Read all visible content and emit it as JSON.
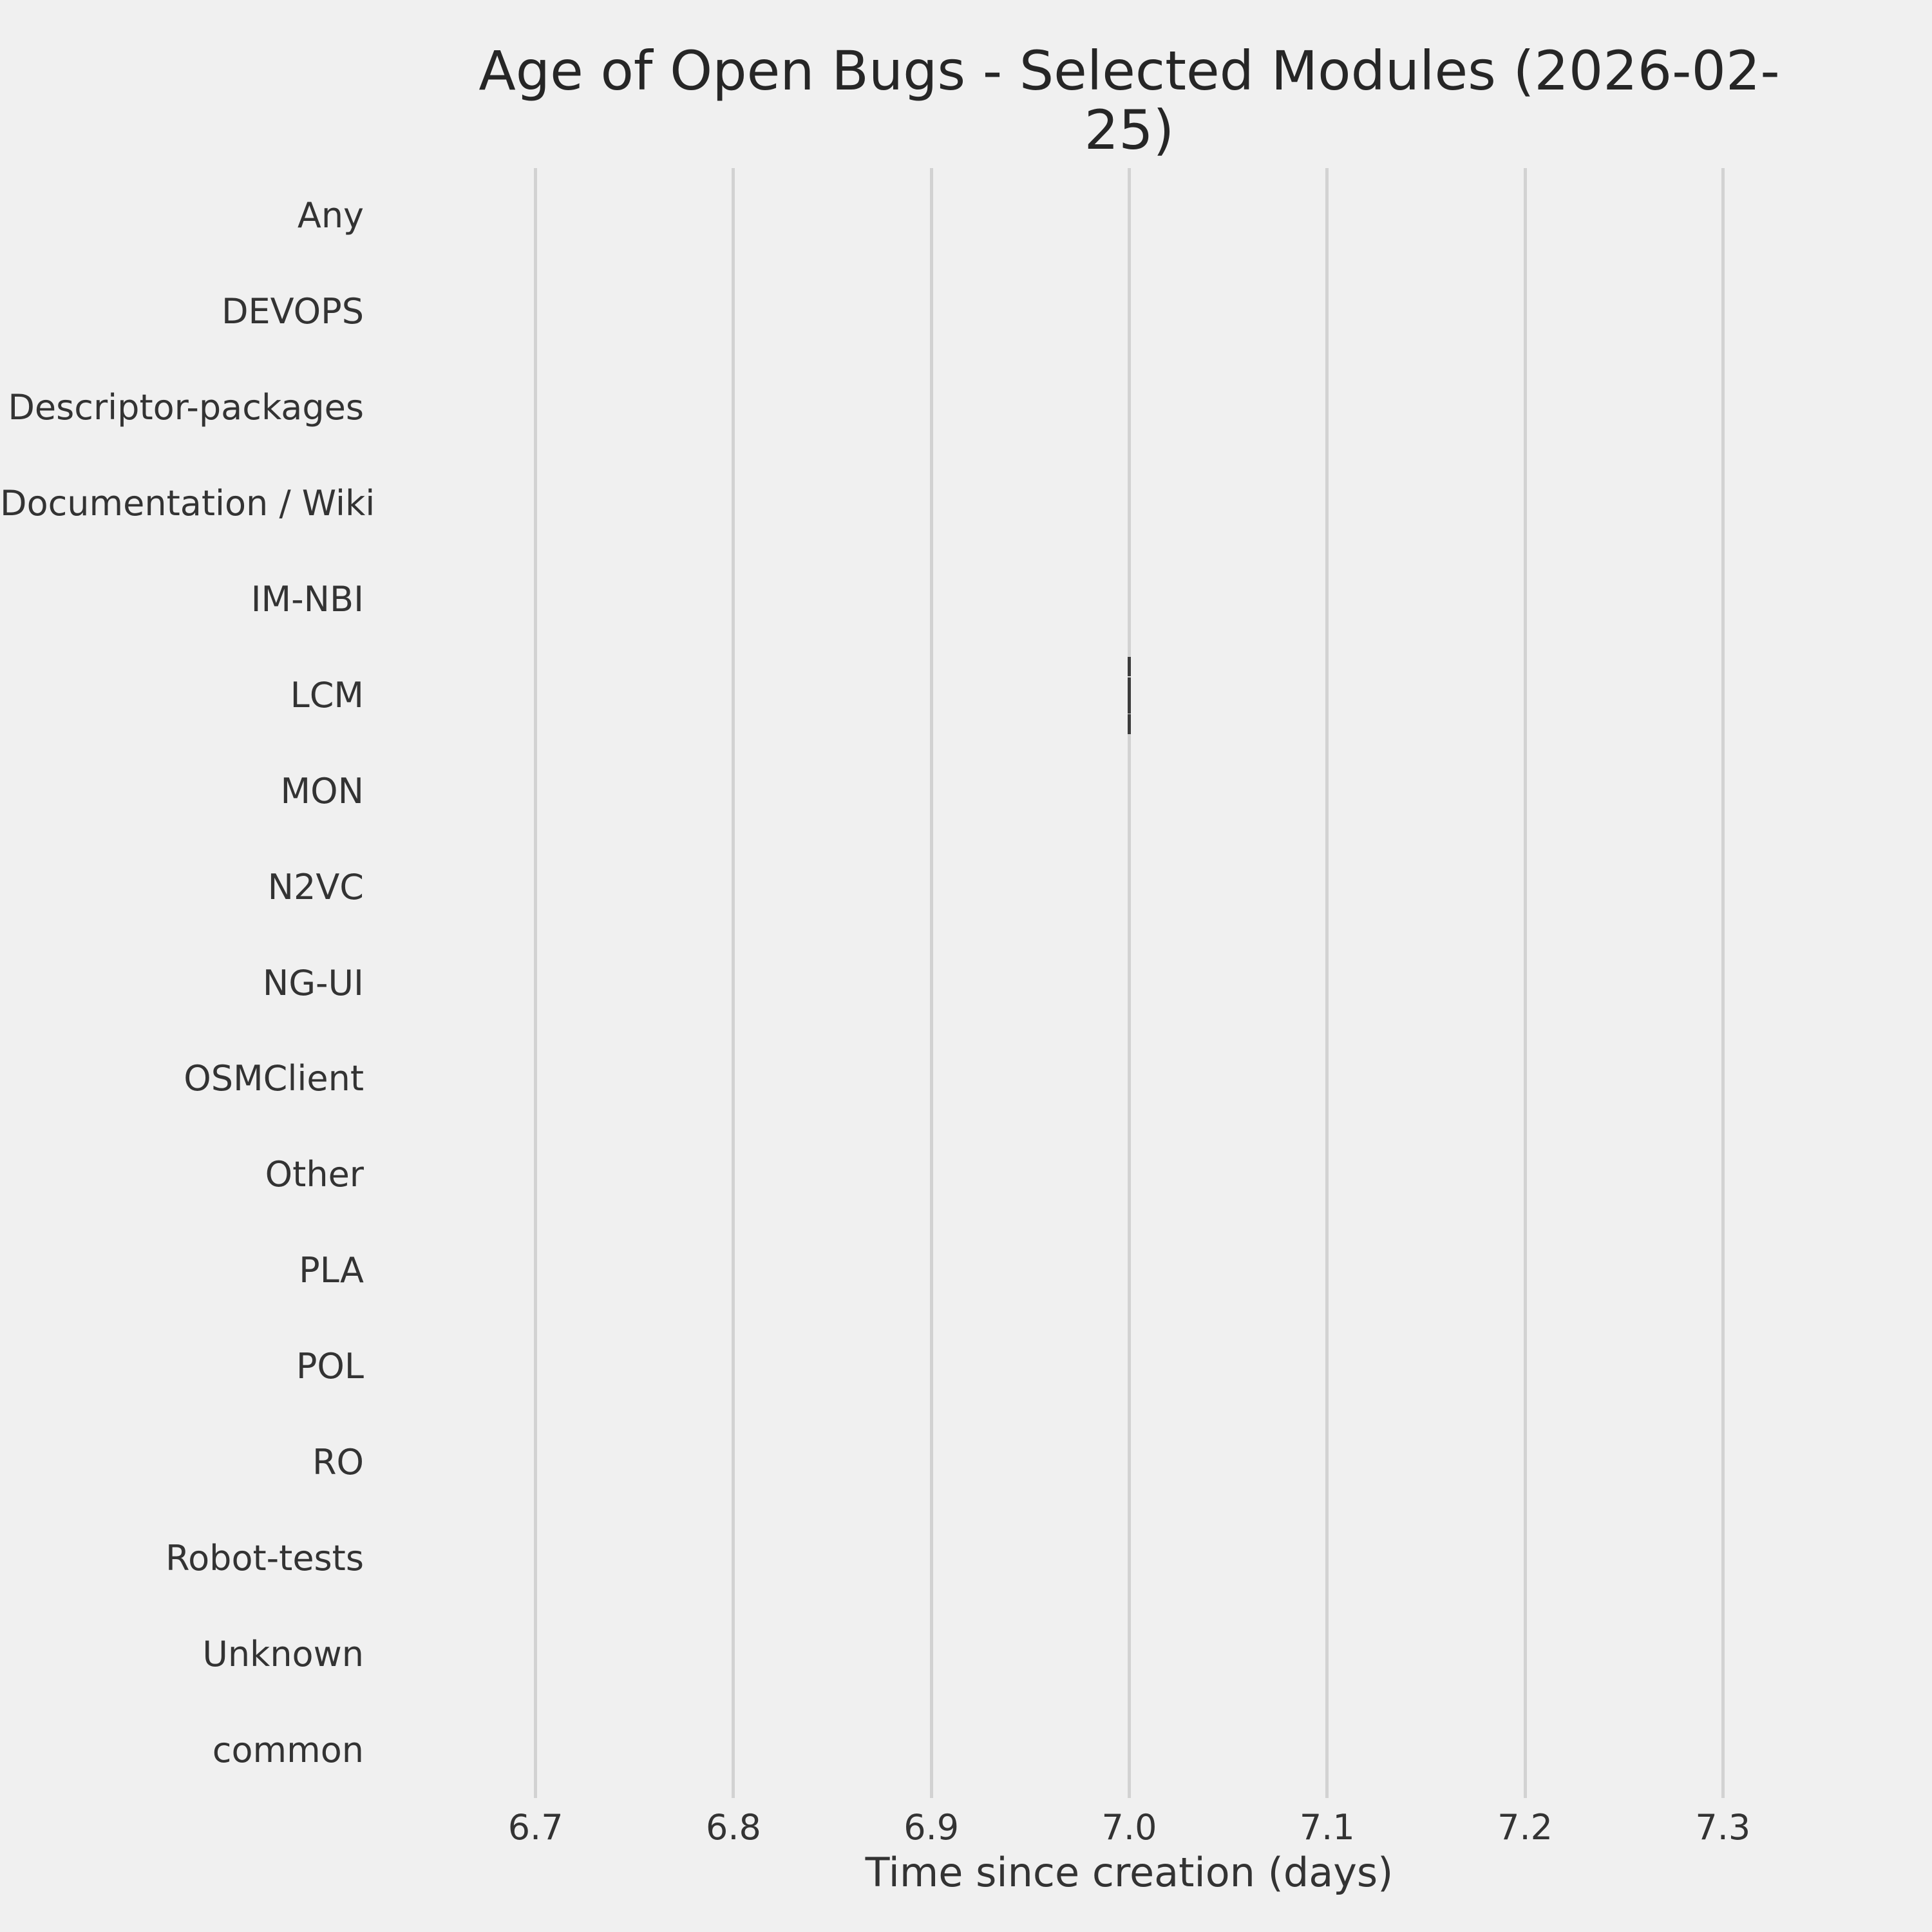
{
  "chart_data": {
    "type": "boxplot",
    "orientation": "horizontal",
    "title": "Age of Open Bugs - Selected Modules (2026-02-25)",
    "xlabel": "Time since creation (days)",
    "ylabel": "",
    "categories": [
      "Any",
      "DEVOPS",
      "Descriptor-packages",
      "Documentation / Wiki",
      "IM-NBI",
      "LCM",
      "MON",
      "N2VC",
      "NG-UI",
      "OSMClient",
      "Other",
      "PLA",
      "POL",
      "RO",
      "Robot-tests",
      "Unknown",
      "common"
    ],
    "x_ticks": [
      "6.7",
      "6.8",
      "6.9",
      "7.0",
      "7.1",
      "7.2",
      "7.3"
    ],
    "xlim": [
      6.65,
      7.35
    ],
    "grid": "vertical-only",
    "legend": "none",
    "boxes": [
      {
        "category": "LCM",
        "min": 7.0,
        "q1": 7.0,
        "median": 7.0,
        "q3": 7.0,
        "max": 7.0
      }
    ],
    "colors": {
      "background": "#f0f0f0",
      "gridline": "#d2d2d2",
      "text": "#333333",
      "title_text": "#262626",
      "box": "#3c3c3c"
    }
  }
}
